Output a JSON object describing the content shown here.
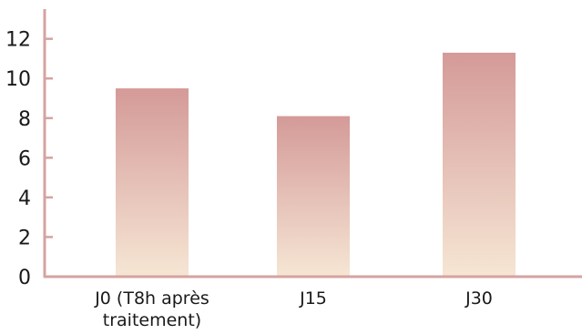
{
  "chart_data": {
    "type": "bar",
    "categories": [
      [
        "J0 (T8h après",
        "traitement)"
      ],
      [
        "J15"
      ],
      [
        "J30"
      ]
    ],
    "values": [
      9.5,
      8.1,
      11.3
    ],
    "yticks": [
      0,
      2,
      4,
      6,
      8,
      10,
      12
    ],
    "ylim": [
      0,
      13.5
    ],
    "grid": false,
    "legend": "none",
    "colors": {
      "axis": "#d4a3a1",
      "bar_top": "#d49a98",
      "bar_bottom": "#f6e6d4"
    }
  }
}
